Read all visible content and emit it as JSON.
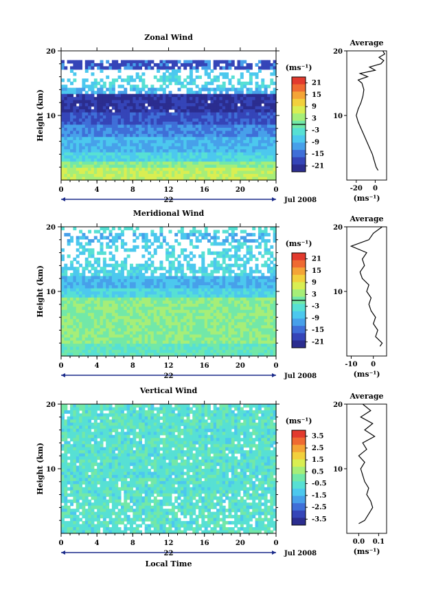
{
  "palette": [
    "#2b2d8f",
    "#3545b8",
    "#3f6fd8",
    "#47a0ea",
    "#4cc8ee",
    "#57e0d4",
    "#72e8a8",
    "#a6ee78",
    "#d9ee52",
    "#f2d03c",
    "#f4a436",
    "#ef6a32",
    "#e23a2e"
  ],
  "chart_data": [
    {
      "id": "zonal",
      "type": "heatmap",
      "title": "Zonal Wind",
      "ylabel": "Height (km)",
      "y_ticks": [
        "20",
        "10"
      ],
      "x_ticks": [
        "0",
        "4",
        "8",
        "12",
        "16",
        "20",
        "0"
      ],
      "day_label": "22",
      "month_label": "Jul 2008",
      "colorbar": {
        "unit": "(ms⁻¹)",
        "ticks": [
          "21",
          "15",
          "9",
          "3",
          "-3",
          "-9",
          "-15",
          "-21"
        ],
        "range": [
          -24,
          24
        ]
      },
      "profile": {
        "title": "Average",
        "y_ticks": [
          "20",
          "10"
        ],
        "x_ticks": [
          "-20",
          "0"
        ],
        "xlim": [
          -30,
          12
        ],
        "xlabel": "(ms⁻¹)",
        "height": [
          1.5,
          2,
          3,
          4,
          5,
          6,
          7,
          8,
          9,
          10,
          11,
          12,
          13,
          14,
          15,
          15.5,
          16,
          16.5,
          17,
          17.5,
          18,
          18.5,
          19,
          19.5,
          20
        ],
        "values": [
          3,
          1,
          -1,
          -3,
          -6,
          -9,
          -12,
          -15,
          -18,
          -20,
          -18,
          -15,
          -13,
          -12,
          -14,
          -18,
          -8,
          -16,
          0,
          -6,
          6,
          9,
          4,
          10,
          8
        ]
      }
    },
    {
      "id": "meridional",
      "type": "heatmap",
      "title": "Meridional Wind",
      "ylabel": "Height (km)",
      "y_ticks": [
        "20",
        "10"
      ],
      "x_ticks": [
        "0",
        "4",
        "8",
        "12",
        "16",
        "20",
        "0"
      ],
      "day_label": "22",
      "month_label": "Jul 2008",
      "colorbar": {
        "unit": "(ms⁻¹)",
        "ticks": [
          "21",
          "15",
          "9",
          "3",
          "-3",
          "-9",
          "-15",
          "-21"
        ],
        "range": [
          -24,
          24
        ]
      },
      "profile": {
        "title": "Average",
        "y_ticks": [
          "20",
          "10"
        ],
        "x_ticks": [
          "-10",
          "0"
        ],
        "xlim": [
          -12,
          6
        ],
        "xlabel": "(ms⁻¹)",
        "height": [
          1.5,
          2,
          3,
          4,
          5,
          6,
          7,
          8,
          9,
          10,
          11,
          12,
          13,
          14,
          15,
          16,
          17,
          18,
          19,
          20
        ],
        "values": [
          3,
          4,
          1,
          2,
          0,
          1,
          -1,
          -2,
          -1,
          -3,
          -2,
          -5,
          -6,
          -4,
          -5,
          -3,
          -10,
          -2,
          0,
          4
        ]
      }
    },
    {
      "id": "vertical",
      "type": "heatmap",
      "title": "Vertical Wind",
      "ylabel": "Height (km)",
      "xlabel": "Local Time",
      "y_ticks": [
        "20",
        "10"
      ],
      "x_ticks": [
        "0",
        "4",
        "8",
        "12",
        "16",
        "20",
        "0"
      ],
      "day_label": "22",
      "month_label": "Jul 2008",
      "colorbar": {
        "unit": "(ms⁻¹)",
        "ticks": [
          "3.5",
          "2.5",
          "1.5",
          "0.5",
          "-0.5",
          "-1.5",
          "-2.5",
          "-3.5"
        ],
        "range": [
          -4,
          4
        ]
      },
      "profile": {
        "title": "Average",
        "y_ticks": [
          "20",
          "10"
        ],
        "x_ticks": [
          "0.0",
          "0.1"
        ],
        "xlim": [
          -0.06,
          0.14
        ],
        "xlabel": "(ms⁻¹)",
        "height": [
          1.5,
          2,
          3,
          4,
          5,
          6,
          7,
          8,
          9,
          10,
          11,
          12,
          13,
          14,
          15,
          16,
          17,
          18,
          19,
          20
        ],
        "values": [
          0.0,
          0.03,
          0.05,
          0.07,
          0.06,
          0.04,
          0.05,
          0.03,
          0.02,
          0.01,
          0.03,
          0.0,
          0.04,
          0.02,
          0.08,
          0.03,
          0.07,
          0.01,
          0.06,
          0.02
        ]
      }
    }
  ]
}
